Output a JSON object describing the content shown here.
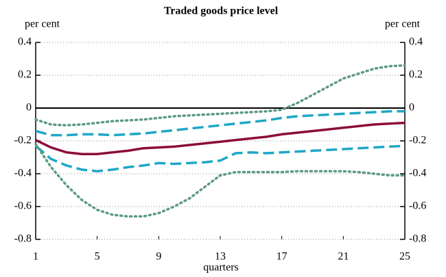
{
  "chart_data": {
    "type": "line",
    "title": "Traded goods price level",
    "y_unit_label": "per cent",
    "y2_unit_label": "per cent",
    "x_label": "quarters",
    "x": [
      1,
      2,
      3,
      4,
      5,
      6,
      7,
      8,
      9,
      10,
      11,
      12,
      13,
      14,
      15,
      16,
      17,
      18,
      19,
      20,
      21,
      22,
      23,
      24,
      25
    ],
    "xlim": [
      1,
      25
    ],
    "xticks": [
      1,
      5,
      9,
      13,
      17,
      21,
      25
    ],
    "ylim": [
      -0.8,
      0.4
    ],
    "yticks": [
      0.4,
      0.2,
      0,
      -0.2,
      -0.4,
      -0.6,
      -0.8
    ],
    "y2lim": [
      -0.8,
      0.4
    ],
    "y2ticks": [
      0.4,
      0.2,
      0,
      -0.2,
      -0.4,
      -0.6,
      -0.8
    ],
    "grid": true,
    "zero_line": true,
    "series": [
      {
        "color": "#5b9a7e",
        "dash": "dotted",
        "values": [
          -0.07,
          -0.1,
          -0.105,
          -0.1,
          -0.09,
          -0.08,
          -0.075,
          -0.07,
          -0.06,
          -0.05,
          -0.045,
          -0.04,
          -0.035,
          -0.03,
          -0.025,
          -0.02,
          -0.01,
          0.03,
          0.08,
          0.13,
          0.18,
          0.21,
          0.24,
          0.255,
          0.26
        ]
      },
      {
        "color": "#1ea7c5",
        "dash": "dashed",
        "values": [
          -0.14,
          -0.165,
          -0.165,
          -0.16,
          -0.16,
          -0.165,
          -0.16,
          -0.155,
          -0.145,
          -0.135,
          -0.125,
          -0.115,
          -0.105,
          -0.095,
          -0.085,
          -0.075,
          -0.06,
          -0.05,
          -0.045,
          -0.04,
          -0.035,
          -0.03,
          -0.025,
          -0.02,
          -0.02
        ]
      },
      {
        "color": "#8c0b3c",
        "dash": "solid",
        "values": [
          -0.195,
          -0.24,
          -0.27,
          -0.28,
          -0.28,
          -0.27,
          -0.26,
          -0.245,
          -0.24,
          -0.235,
          -0.225,
          -0.215,
          -0.205,
          -0.195,
          -0.185,
          -0.175,
          -0.16,
          -0.15,
          -0.14,
          -0.13,
          -0.12,
          -0.11,
          -0.1,
          -0.095,
          -0.09
        ]
      },
      {
        "color": "#1ea7c5",
        "dash": "dashed",
        "values": [
          -0.23,
          -0.31,
          -0.35,
          -0.375,
          -0.385,
          -0.375,
          -0.36,
          -0.35,
          -0.335,
          -0.34,
          -0.335,
          -0.33,
          -0.32,
          -0.275,
          -0.27,
          -0.275,
          -0.27,
          -0.265,
          -0.26,
          -0.255,
          -0.25,
          -0.245,
          -0.24,
          -0.235,
          -0.23
        ]
      },
      {
        "color": "#5b9a7e",
        "dash": "dotted",
        "values": [
          -0.22,
          -0.36,
          -0.47,
          -0.56,
          -0.62,
          -0.65,
          -0.66,
          -0.66,
          -0.64,
          -0.6,
          -0.55,
          -0.48,
          -0.41,
          -0.39,
          -0.39,
          -0.39,
          -0.39,
          -0.385,
          -0.385,
          -0.385,
          -0.385,
          -0.39,
          -0.4,
          -0.41,
          -0.41
        ]
      }
    ]
  }
}
